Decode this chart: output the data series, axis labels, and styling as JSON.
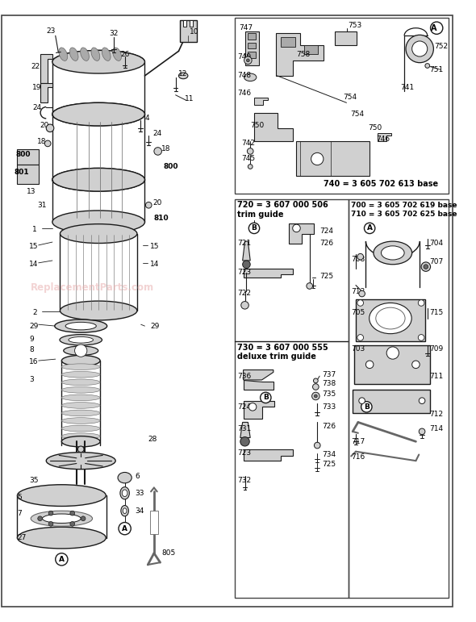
{
  "bg_color": "#ffffff",
  "line_color": "#1a1a1a",
  "gray_light": "#d0d0d0",
  "gray_med": "#aaaaaa",
  "gray_dark": "#666666",
  "watermark_text": "ReplacementParts.com",
  "watermark_color": "#e8b0b0",
  "watermark_alpha": 0.55,
  "box1_title1": "720 = 3 607 000 506",
  "box1_title2": "trim guide",
  "box2_title1": "730 = 3 607 000 555",
  "box2_title2": "deluxe trim guide",
  "box3_title1": "700 = 3 605 702 619 base",
  "box3_title2": "710 = 3 605 702 625 base",
  "label740": "740 = 3 605 702 613 base",
  "figsize": [
    5.9,
    7.71
  ],
  "dpi": 100
}
